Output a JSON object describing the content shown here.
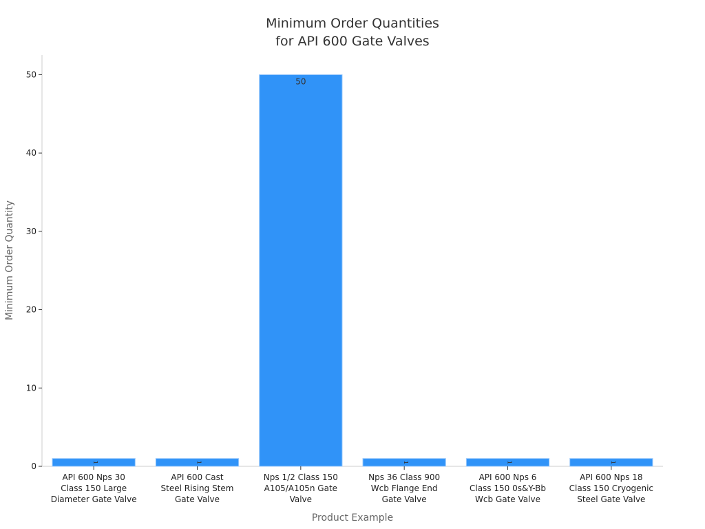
{
  "chart_data": {
    "type": "bar",
    "title": [
      "Minimum Order Quantities",
      "for API 600 Gate Valves"
    ],
    "xlabel": "Product Example",
    "ylabel": "Minimum Order Quantity",
    "categories": [
      [
        "API 600 Nps 30",
        "Class 150 Large",
        "Diameter Gate Valve"
      ],
      [
        "API 600 Cast",
        "Steel Rising Stem",
        "Gate Valve"
      ],
      [
        "Nps 1/2 Class 150",
        "A105/A105n Gate",
        "Valve"
      ],
      [
        "Nps 36 Class 900",
        "Wcb Flange End",
        "Gate Valve"
      ],
      [
        "API 600 Nps 6",
        "Class 150 0s&Y-Bb",
        "Wcb Gate Valve"
      ],
      [
        "API 600 Nps 18",
        "Class 150 Cryogenic",
        "Steel Gate Valve"
      ]
    ],
    "values": [
      1,
      1,
      50,
      1,
      1,
      1
    ],
    "value_labels": [
      "1",
      "1",
      "50",
      "1",
      "1",
      "1"
    ],
    "ylim": [
      0,
      52.5
    ],
    "yticks": [
      0,
      10,
      20,
      30,
      40,
      50
    ],
    "ytick_labels": [
      "0",
      "10",
      "20",
      "30",
      "40",
      "50"
    ],
    "bar_color": "#3093F8",
    "grid": false,
    "legend": "none"
  }
}
